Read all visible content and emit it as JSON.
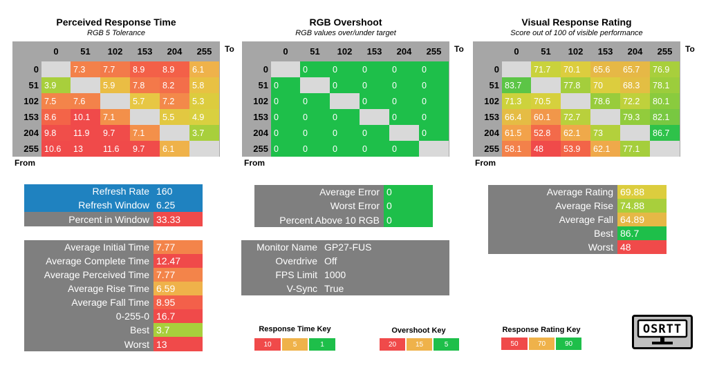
{
  "colors": {
    "red": "#f04a4a",
    "orange_red": "#f3704a",
    "orange": "#f1924a",
    "light_orange": "#efb24a",
    "yellow": "#dcd43c",
    "yellow_green": "#a8cf3c",
    "green": "#1ebf4a",
    "blue": "#1f82c0",
    "gray": "#7f7f7f",
    "diag": "#d9d9d9",
    "header_gray": "#a6a6a6"
  },
  "matrices": [
    {
      "title": "Perceived Response Time",
      "subtitle": "RGB 5 Tolerance",
      "to_label": "To",
      "from_label": "From",
      "col_headers": [
        "0",
        "51",
        "102",
        "153",
        "204",
        "255"
      ],
      "row_headers": [
        "0",
        "51",
        "102",
        "153",
        "204",
        "255"
      ],
      "rows": [
        [
          "",
          "7.3",
          "7.7",
          "8.9",
          "8.9",
          "6.1"
        ],
        [
          "3.9",
          "",
          "5.9",
          "7.8",
          "8.2",
          "5.8"
        ],
        [
          "7.5",
          "7.6",
          "",
          "5.7",
          "7.2",
          "5.3"
        ],
        [
          "8.6",
          "10.1",
          "7.1",
          "",
          "5.5",
          "4.9"
        ],
        [
          "9.8",
          "11.9",
          "9.7",
          "7.1",
          "",
          "3.7"
        ],
        [
          "10.6",
          "13",
          "11.6",
          "9.7",
          "6.1",
          ""
        ]
      ],
      "colors": [
        [
          "",
          "#f3814a",
          "#f37a4a",
          "#f36048",
          "#f36048",
          "#efb24a"
        ],
        [
          "#a8cf3c",
          "",
          "#eabd44",
          "#f3794a",
          "#f36e4a",
          "#e8c143"
        ],
        [
          "#f3844a",
          "#f3824a",
          "",
          "#e7c744",
          "#f3894a",
          "#dccc3e"
        ],
        [
          "#f36448",
          "#f04a4a",
          "#f3904a",
          "",
          "#e2c841",
          "#d9d040"
        ],
        [
          "#f04e4a",
          "#f04a4a",
          "#f04c4a",
          "#f3904a",
          "",
          "#a8cf3c"
        ],
        [
          "#f04a4a",
          "#f04a4a",
          "#f04a4a",
          "#f04c4a",
          "#efb24a",
          ""
        ]
      ]
    },
    {
      "title": "RGB Overshoot",
      "subtitle": "RGB values over/under target",
      "to_label": "To",
      "from_label": "From",
      "col_headers": [
        "0",
        "51",
        "102",
        "153",
        "204",
        "255"
      ],
      "row_headers": [
        "0",
        "51",
        "102",
        "153",
        "204",
        "255"
      ],
      "rows": [
        [
          "",
          "0",
          "0",
          "0",
          "0",
          "0"
        ],
        [
          "0",
          "",
          "0",
          "0",
          "0",
          "0"
        ],
        [
          "0",
          "0",
          "",
          "0",
          "0",
          "0"
        ],
        [
          "0",
          "0",
          "0",
          "",
          "0",
          "0"
        ],
        [
          "0",
          "0",
          "0",
          "0",
          "",
          "0"
        ],
        [
          "0",
          "0",
          "0",
          "0",
          "0",
          ""
        ]
      ],
      "colors": [
        [
          "",
          "#1ebf4a",
          "#1ebf4a",
          "#1ebf4a",
          "#1ebf4a",
          "#1ebf4a"
        ],
        [
          "#1ebf4a",
          "",
          "#1ebf4a",
          "#1ebf4a",
          "#1ebf4a",
          "#1ebf4a"
        ],
        [
          "#1ebf4a",
          "#1ebf4a",
          "",
          "#1ebf4a",
          "#1ebf4a",
          "#1ebf4a"
        ],
        [
          "#1ebf4a",
          "#1ebf4a",
          "#1ebf4a",
          "",
          "#1ebf4a",
          "#1ebf4a"
        ],
        [
          "#1ebf4a",
          "#1ebf4a",
          "#1ebf4a",
          "#1ebf4a",
          "",
          "#1ebf4a"
        ],
        [
          "#1ebf4a",
          "#1ebf4a",
          "#1ebf4a",
          "#1ebf4a",
          "#1ebf4a",
          ""
        ]
      ]
    },
    {
      "title": "Visual Response Rating",
      "subtitle": "Score out of 100 of visible performance",
      "to_label": "To",
      "from_label": "From",
      "col_headers": [
        "0",
        "51",
        "102",
        "153",
        "204",
        "255"
      ],
      "row_headers": [
        "0",
        "51",
        "102",
        "153",
        "204",
        "255"
      ],
      "rows": [
        [
          "",
          "71.7",
          "70.1",
          "65.6",
          "65.7",
          "76.9"
        ],
        [
          "83.7",
          "",
          "77.8",
          "70",
          "68.3",
          "78.1"
        ],
        [
          "71.3",
          "70.5",
          "",
          "78.6",
          "72.2",
          "80.1"
        ],
        [
          "66.4",
          "60.1",
          "72.7",
          "",
          "79.3",
          "82.1"
        ],
        [
          "61.5",
          "52.8",
          "62.1",
          "73",
          "",
          "86.7"
        ],
        [
          "58.1",
          "48",
          "53.9",
          "62.1",
          "77.1",
          ""
        ]
      ],
      "colors": [
        [
          "",
          "#c9d23c",
          "#dccd3e",
          "#e6b846",
          "#e6b846",
          "#a8cf3c"
        ],
        [
          "#5cc546",
          "",
          "#a4ce3c",
          "#dccd3e",
          "#e3be43",
          "#9ccd3c"
        ],
        [
          "#cdd23c",
          "#d6d03d",
          "",
          "#98cc3c",
          "#bfd13c",
          "#8acb3e"
        ],
        [
          "#e5bc44",
          "#f1974a",
          "#b9d03c",
          "",
          "#92cc3c",
          "#78c841"
        ],
        [
          "#f2a24a",
          "#f36a4a",
          "#efa94a",
          "#b3d03c",
          "",
          "#2ec24a"
        ],
        [
          "#f3814a",
          "#f04a4a",
          "#f36448",
          "#efa94a",
          "#a5ce3c",
          ""
        ]
      ]
    }
  ],
  "refresh_panel": {
    "rows": [
      {
        "label": "Refresh Rate",
        "value": "160"
      },
      {
        "label": "Refresh Window",
        "value": "6.25"
      },
      {
        "label": "Percent in Window",
        "value": "33.33"
      }
    ]
  },
  "stats_panel": {
    "rows": [
      {
        "label": "Average Initial Time",
        "value": "7.77"
      },
      {
        "label": "Average Complete Time",
        "value": "12.47"
      },
      {
        "label": "Average Perceived Time",
        "value": "7.77"
      },
      {
        "label": "Average Rise Time",
        "value": "6.59"
      },
      {
        "label": "Average Fall Time",
        "value": "8.95"
      },
      {
        "label": "0-255-0",
        "value": "16.7"
      },
      {
        "label": "Best",
        "value": "3.7"
      },
      {
        "label": "Worst",
        "value": "13"
      }
    ]
  },
  "error_panel": {
    "rows": [
      {
        "label": "Average Error",
        "value": "0"
      },
      {
        "label": "Worst Error",
        "value": "0"
      },
      {
        "label": "Percent Above 10 RGB",
        "value": "0"
      }
    ]
  },
  "monitor_panel": {
    "rows": [
      {
        "label": "Monitor Name",
        "value": "GP27-FUS"
      },
      {
        "label": "Overdrive",
        "value": "Off"
      },
      {
        "label": "FPS Limit",
        "value": "1000"
      },
      {
        "label": "V-Sync",
        "value": "True"
      }
    ]
  },
  "rating_panel": {
    "rows": [
      {
        "label": "Average Rating",
        "value": "69.88"
      },
      {
        "label": "Average Rise",
        "value": "74.88"
      },
      {
        "label": "Average Fall",
        "value": "64.89"
      },
      {
        "label": "Best",
        "value": "86.7"
      },
      {
        "label": "Worst",
        "value": "48"
      }
    ]
  },
  "keys": [
    {
      "title": "Response Time Key",
      "items": [
        "10",
        "5",
        "1"
      ]
    },
    {
      "title": "Overshoot Key",
      "items": [
        "20",
        "15",
        "5"
      ]
    },
    {
      "title": "Response Rating Key",
      "items": [
        "50",
        "70",
        "90"
      ]
    }
  ],
  "logo": {
    "text": "OSRTT"
  }
}
